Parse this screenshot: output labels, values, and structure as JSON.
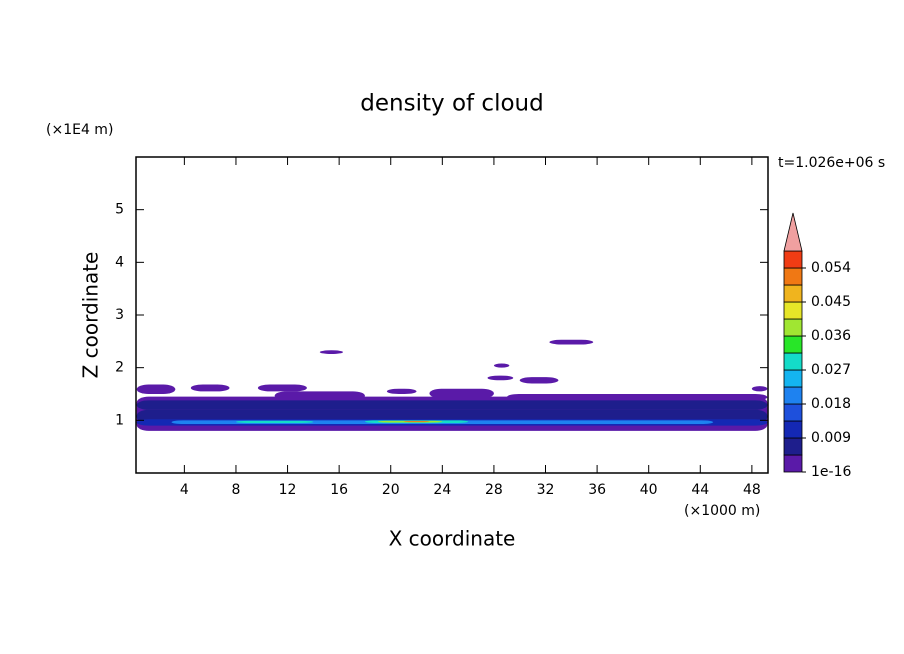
{
  "chart_data": {
    "type": "contour",
    "title": "density of cloud",
    "x_label": "X coordinate",
    "y_label": "Z coordinate",
    "x_unit": "(×1000 m)",
    "y_unit": "(×1E4 m)",
    "time_label": "t=1.026e+06 s",
    "xlim": [
      0.25,
      49.25
    ],
    "xticks": [
      4,
      8,
      12,
      16,
      20,
      24,
      28,
      32,
      36,
      40,
      44,
      48
    ],
    "ylim": [
      0,
      6
    ],
    "yticks": [
      1,
      2,
      3,
      4,
      5
    ],
    "regions": [
      {
        "x": [
          0.3,
          49.2
        ],
        "z": [
          0.8,
          1.45
        ],
        "value": 0.002
      },
      {
        "x": [
          0.3,
          3.3
        ],
        "z": [
          1.5,
          1.68
        ],
        "value": 0.002
      },
      {
        "x": [
          4.5,
          7.5
        ],
        "z": [
          1.55,
          1.68
        ],
        "value": 0.002
      },
      {
        "x": [
          9.7,
          13.5
        ],
        "z": [
          1.55,
          1.68
        ],
        "value": 0.002
      },
      {
        "x": [
          11,
          18
        ],
        "z": [
          1.38,
          1.55
        ],
        "value": 0.002
      },
      {
        "x": [
          19.7,
          22
        ],
        "z": [
          1.5,
          1.6
        ],
        "value": 0.002
      },
      {
        "x": [
          23,
          28
        ],
        "z": [
          1.42,
          1.6
        ],
        "value": 0.002
      },
      {
        "x": [
          30,
          33
        ],
        "z": [
          1.7,
          1.82
        ],
        "value": 0.002
      },
      {
        "x": [
          27.5,
          29.5
        ],
        "z": [
          1.76,
          1.85
        ],
        "value": 0.002
      },
      {
        "x": [
          28,
          29.2
        ],
        "z": [
          2.0,
          2.08
        ],
        "value": 0.002
      },
      {
        "x": [
          14.5,
          16.3
        ],
        "z": [
          2.26,
          2.33
        ],
        "value": 0.002
      },
      {
        "x": [
          32.3,
          35.7
        ],
        "z": [
          2.44,
          2.53
        ],
        "value": 0.002
      },
      {
        "x": [
          48,
          49.2
        ],
        "z": [
          1.55,
          1.65
        ],
        "value": 0.002
      },
      {
        "x": [
          29,
          49.2
        ],
        "z": [
          1.38,
          1.5
        ],
        "value": 0.002
      },
      {
        "x": [
          0.3,
          49.2
        ],
        "z": [
          1.2,
          1.38
        ],
        "value": 0.005
      },
      {
        "x": [
          0.3,
          49.2
        ],
        "z": [
          0.95,
          1.2
        ],
        "value": 0.007
      },
      {
        "x": [
          0.3,
          49.2
        ],
        "z": [
          0.9,
          1.02
        ],
        "value": 0.012
      },
      {
        "x": [
          3,
          45
        ],
        "z": [
          0.93,
          1.0
        ],
        "value": 0.02
      },
      {
        "x": [
          8,
          14
        ],
        "z": [
          0.95,
          0.99
        ],
        "value": 0.03
      },
      {
        "x": [
          18,
          26
        ],
        "z": [
          0.95,
          1.0
        ],
        "value": 0.03
      },
      {
        "x": [
          19,
          24
        ],
        "z": [
          0.96,
          0.99
        ],
        "value": 0.04
      },
      {
        "x": [
          21,
          23
        ],
        "z": [
          0.965,
          0.985
        ],
        "value": 0.05
      }
    ],
    "colorbar": {
      "levels": [
        1e-16,
        0.0045,
        0.009,
        0.0135,
        0.018,
        0.0225,
        0.027,
        0.0315,
        0.036,
        0.0405,
        0.045,
        0.0495,
        0.054
      ],
      "colors": [
        "#5a1aa8",
        "#1e1e8c",
        "#1428b4",
        "#1e50dc",
        "#1e82f0",
        "#14b4f0",
        "#14dcc8",
        "#28e628",
        "#a0e632",
        "#e6e628",
        "#f0b41e",
        "#f07814",
        "#f03c14"
      ],
      "ticks": [
        1e-16,
        0.009,
        0.018,
        0.027,
        0.036,
        0.045,
        0.054
      ],
      "extend_color": "#f0a0a0"
    }
  }
}
